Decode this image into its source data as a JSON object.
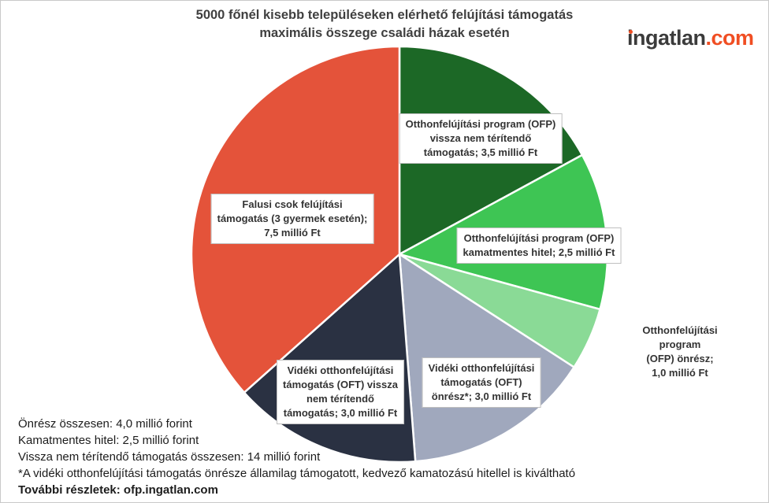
{
  "title": "5000 főnél kisebb településeken elérhető felújítási támogatás\nmaximális összege családi házak esetén",
  "logo": {
    "name": "ingatlan",
    "tld": ".com",
    "brand_color": "#f04e23"
  },
  "chart_data": {
    "type": "pie",
    "title": "5000 főnél kisebb településeken elérhető felújítási támogatás maximális összege családi házak esetén",
    "unit": "millió Ft",
    "total": 20.5,
    "start_angle_deg": 0,
    "direction": "clockwise",
    "slices": [
      {
        "label": "Otthonfelújítási program (OFP) vissza nem térítendő támogatás",
        "value": 3.5,
        "color": "#1c6826",
        "label_display": "Otthonfelújítási program (OFP)\nvissza nem térítendő\ntámogatás; 3,5 millió Ft"
      },
      {
        "label": "Otthonfelújítási program (OFP) kamatmentes hitel",
        "value": 2.5,
        "color": "#3ec554",
        "label_display": "Otthonfelújítási program (OFP)\nkamatmentes hitel; 2,5 millió Ft"
      },
      {
        "label": "Otthonfelújítási program (OFP) önrész",
        "value": 1.0,
        "color": "#8ada96",
        "label_display": "Otthonfelújítási program\n(OFP) önrész; 1,0 millió Ft"
      },
      {
        "label": "Vidéki otthonfelújítási támogatás (OFT) önrész*",
        "value": 3.0,
        "color": "#a0a8bd",
        "label_display": "Vidéki otthonfelújítási\ntámogatás (OFT)\nönrész*; 3,0 millió Ft"
      },
      {
        "label": "Vidéki otthonfelújítási támogatás (OFT) vissza nem térítendő támogatás",
        "value": 3.0,
        "color": "#2a3142",
        "label_display": "Vidéki otthonfelújítási\ntámogatás (OFT) vissza\nnem térítendő\ntámogatás; 3,0 millió Ft"
      },
      {
        "label": "Falusi csok felújítási támogatás (3 gyermek esetén)",
        "value": 7.5,
        "color": "#e4533a",
        "label_display": "Falusi csok felújítási\ntámogatás (3 gyermek esetén);\n7,5 millió Ft"
      }
    ]
  },
  "footnotes": [
    "Önrész összesen: 4,0 millió forint",
    "Kamatmentes hitel: 2,5 millió forint",
    "Vissza nem térítendő támogatás összesen: 14 millió forint",
    "*A vidéki otthonfelújítási támogatás önrésze államilag támogatott, kedvező kamatozású hitellel is kiváltható",
    "További részletek: ofp.ingatlan.com"
  ]
}
